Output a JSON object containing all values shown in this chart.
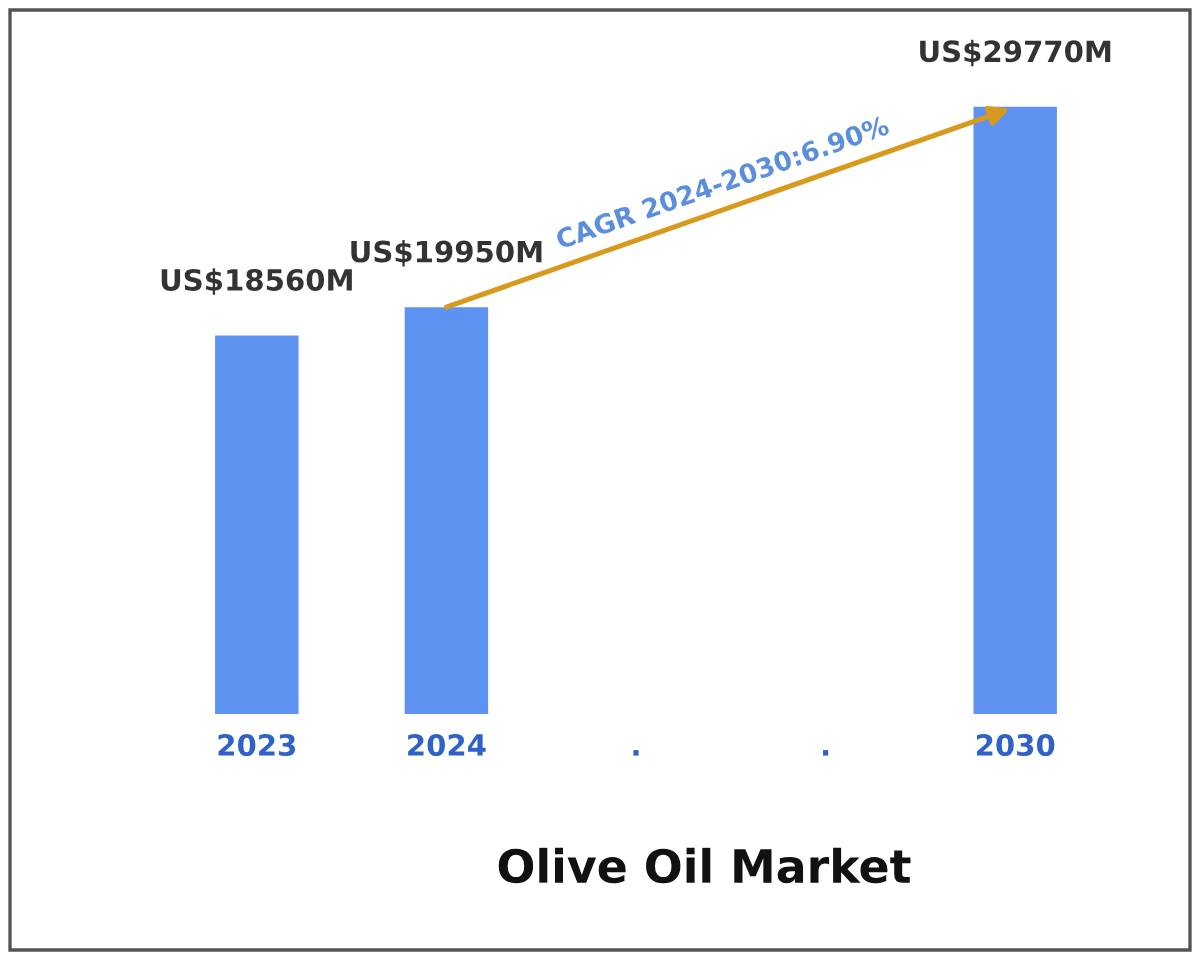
{
  "chart_data": {
    "type": "bar",
    "title": "Olive Oil Market",
    "categories": [
      "2023",
      "2024",
      ".",
      ".",
      "2030"
    ],
    "values": [
      18560000000,
      19950000000,
      null,
      null,
      29770000000
    ],
    "value_labels": [
      "US$18560M",
      "US$19950M",
      null,
      null,
      "US$29770M"
    ],
    "color": "#5e92f2",
    "annotations": [
      "CAGR 2024-2030:6.90%"
    ]
  }
}
